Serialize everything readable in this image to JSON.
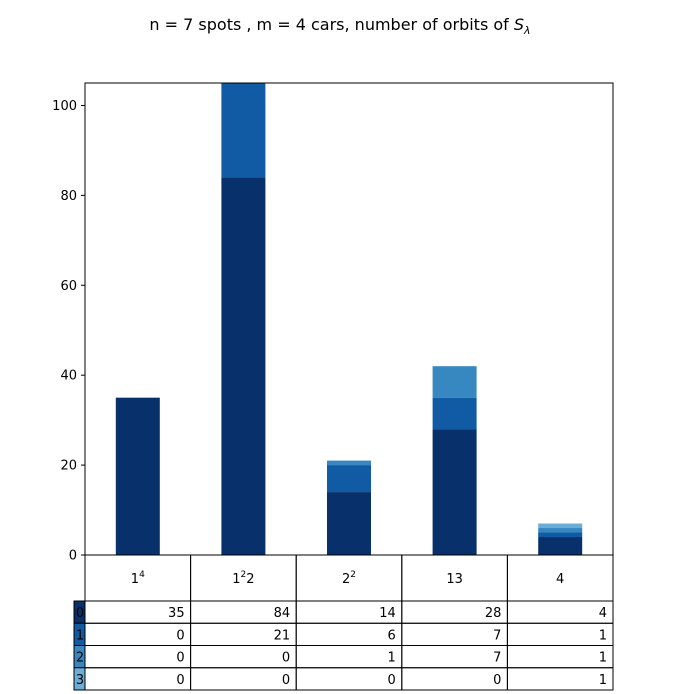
{
  "chart_data": {
    "type": "bar",
    "stacked": true,
    "title_main": "n = 7 spots , m = 4 cars, number of orbits of ",
    "title_symbol": "S",
    "title_subscript": "λ",
    "categories": [
      {
        "base": "1",
        "sup": "4",
        "tail": ""
      },
      {
        "base": "1",
        "sup": "2",
        "tail": "2"
      },
      {
        "base": "2",
        "sup": "2",
        "tail": ""
      },
      {
        "base": "13",
        "sup": "",
        "tail": ""
      },
      {
        "base": "4",
        "sup": "",
        "tail": ""
      }
    ],
    "series": [
      {
        "name": "0",
        "color": "#08306b",
        "values": [
          35,
          84,
          14,
          28,
          4
        ]
      },
      {
        "name": "1",
        "color": "#105ba4",
        "values": [
          0,
          21,
          6,
          7,
          1
        ]
      },
      {
        "name": "2",
        "color": "#3787c0",
        "values": [
          0,
          0,
          1,
          7,
          1
        ]
      },
      {
        "name": "3",
        "color": "#6aaed6",
        "values": [
          0,
          0,
          0,
          0,
          1
        ]
      }
    ],
    "y_ticks": [
      0,
      20,
      40,
      60,
      80,
      100
    ],
    "ylim": [
      0,
      105
    ],
    "grid": false,
    "table_below": true
  }
}
